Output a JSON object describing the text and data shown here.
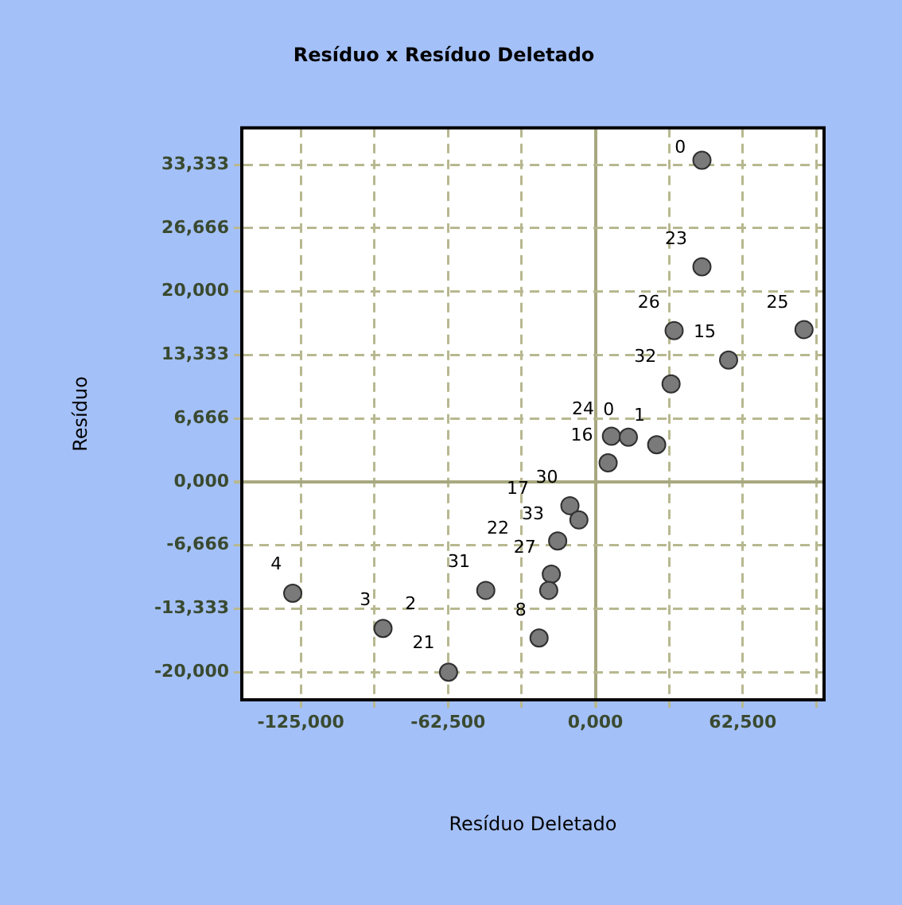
{
  "chart_data": {
    "type": "scatter",
    "title": "Resíduo x Resíduo Deletado",
    "xlabel": "Resíduo Deletado",
    "ylabel": "Resíduo",
    "x": [
      45.2,
      45.2,
      88.5,
      33.4,
      56.5,
      32.1,
      6.8,
      14.0,
      26.0,
      5.4,
      -10.8,
      -7.0,
      -16.0,
      -18.7,
      -19.8,
      -46.5,
      -128.4,
      -90.1,
      -23.9,
      -62.3
    ],
    "series": [
      {
        "color": "#7a7a7a",
        "values": [
          33.8,
          22.6,
          16.0,
          15.9,
          12.8,
          10.3,
          4.8,
          4.7,
          3.9,
          2.0,
          -2.5,
          -4.0,
          -6.2,
          -9.7,
          -11.4,
          -11.4,
          -11.7,
          -15.4,
          -16.4,
          -20.0
        ]
      }
    ],
    "xlim": [
      -150,
      97
    ],
    "ylim": [
      -22.9,
      37.2
    ],
    "xticks": [
      {
        "value": -125,
        "label": "-125,000"
      },
      {
        "value": -93.75,
        "label": null
      },
      {
        "value": -62.5,
        "label": "-62,500"
      },
      {
        "value": -31.25,
        "label": null
      },
      {
        "value": 0,
        "label": "0,000"
      },
      {
        "value": 31.25,
        "label": null
      },
      {
        "value": 62.5,
        "label": "62,500"
      },
      {
        "value": 93.75,
        "label": null
      }
    ],
    "yticks": [
      {
        "value": -20,
        "label": "-20,000"
      },
      {
        "value": -13.333,
        "label": "-13,333"
      },
      {
        "value": -6.666,
        "label": "-6,666"
      },
      {
        "value": 0,
        "label": "0,000"
      },
      {
        "value": 6.666,
        "label": "6,666"
      },
      {
        "value": 13.333,
        "label": "13,333"
      },
      {
        "value": 20,
        "label": "20,000"
      },
      {
        "value": 26.666,
        "label": "26,666"
      },
      {
        "value": 33.333,
        "label": "33,333"
      }
    ],
    "grid": true,
    "legend": false,
    "marker": "circle",
    "annotations": [
      "0",
      "23",
      "26",
      "15",
      "25",
      "32",
      "24",
      "0",
      "1",
      "16",
      "17",
      "30",
      "33",
      "22",
      "27",
      "31",
      "4",
      "3",
      "2",
      "21",
      "8"
    ]
  }
}
